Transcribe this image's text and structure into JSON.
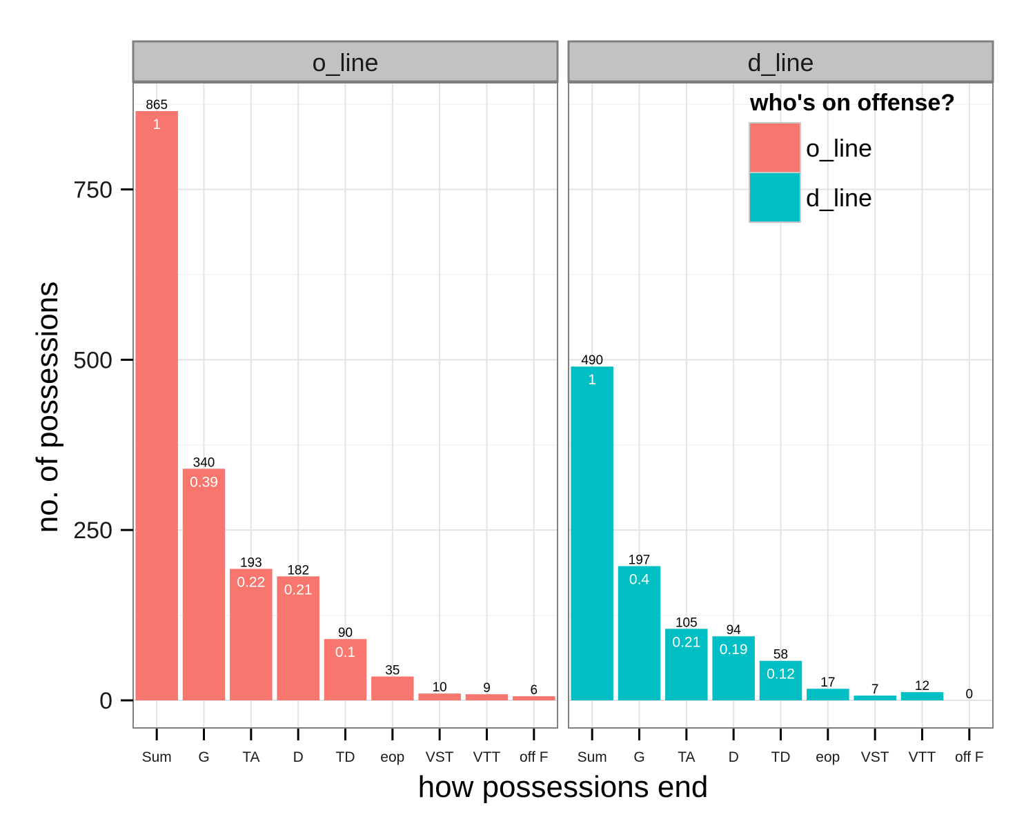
{
  "chart_data": {
    "type": "bar",
    "xlabel": "how possessions end",
    "ylabel": "no. of possessions",
    "ylim": [
      -40,
      910
    ],
    "yticks": [
      0,
      250,
      500,
      750
    ],
    "grid": true,
    "categories": [
      "Sum",
      "G",
      "TA",
      "D",
      "TD",
      "eop",
      "VST",
      "VTT",
      "off F"
    ],
    "panels": [
      {
        "name": "o_line",
        "color": "#F8766D",
        "values": [
          865,
          340,
          193,
          182,
          90,
          35,
          10,
          9,
          6
        ],
        "proportion_labels": [
          "1",
          "0.39",
          "0.22",
          "0.21",
          "0.1",
          "",
          "",
          "",
          ""
        ]
      },
      {
        "name": "d_line",
        "color": "#00BFC4",
        "values": [
          490,
          197,
          105,
          94,
          58,
          17,
          7,
          12,
          0
        ],
        "proportion_labels": [
          "1",
          "0.4",
          "0.21",
          "0.19",
          "0.12",
          "",
          "",
          "",
          ""
        ]
      }
    ],
    "legend": {
      "title": "who's on offense?",
      "placement": "top-right",
      "items": [
        {
          "label": "o_line",
          "color": "#F8766D"
        },
        {
          "label": "d_line",
          "color": "#00BFC4"
        }
      ]
    }
  }
}
